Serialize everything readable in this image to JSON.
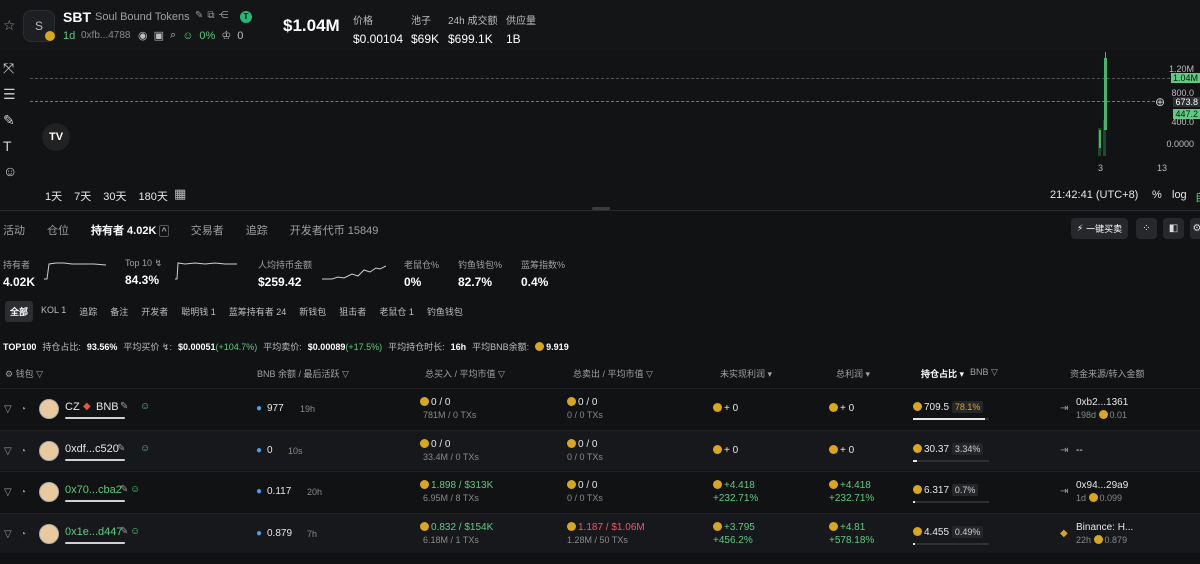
{
  "token": {
    "symbol": "SBT",
    "name": "Soul Bound Tokens",
    "logo_letter": "S",
    "badge": "T",
    "age": "1d",
    "address": "0xfb...4788",
    "holders_pct": "0%",
    "holders_count": "0"
  },
  "market": {
    "mcap": "$1.04M",
    "stats": [
      {
        "label": "价格",
        "value": "$0.00104"
      },
      {
        "label": "池子",
        "value": "$69K"
      },
      {
        "label": "24h 成交额",
        "value": "$699.1K"
      },
      {
        "label": "供应量",
        "value": "1B"
      }
    ]
  },
  "chart": {
    "y_labels": [
      "1.20M",
      "1.04M",
      "800.0",
      "673.8",
      "447.2",
      "400.0",
      "0.0000"
    ],
    "x_labels": [
      "3",
      "13"
    ],
    "periods": [
      "1天",
      "7天",
      "30天",
      "180天"
    ],
    "clock": "21:42:41 (UTC+8)",
    "pct": "%",
    "log": "log",
    "auto": "自",
    "logo_text": "TV"
  },
  "tabs": [
    {
      "label": "活动"
    },
    {
      "label": "仓位"
    },
    {
      "label": "持有者 4.02K"
    },
    {
      "label": "交易者"
    },
    {
      "label": "追踪"
    },
    {
      "label": "开发者代币 15849"
    }
  ],
  "toolbar": {
    "one_click": "一键买卖"
  },
  "metrics": [
    {
      "label": "持有者",
      "value": "4.02K"
    },
    {
      "label": "Top 10 ↯",
      "value": "84.3%"
    },
    {
      "label": "人均持币金额",
      "value": "$259.42"
    },
    {
      "label": "老鼠仓%",
      "value": "0%"
    },
    {
      "label": "钓鱼钱包%",
      "value": "82.7%"
    },
    {
      "label": "蓝筹指数%",
      "value": "0.4%"
    }
  ],
  "filters": [
    "全部",
    "KOL 1",
    "追踪",
    "备注",
    "开发者",
    "聪明钱 1",
    "蓝筹持有者 24",
    "新钱包",
    "狙击者",
    "老鼠仓 1",
    "钓鱼钱包"
  ],
  "summary": {
    "top": "TOP100",
    "hold_label": "持仓占比:",
    "hold": "93.56%",
    "avgbuy_label": "平均买价 ↯:",
    "avgbuy": "$0.00051",
    "avgbuy_chg": "(+104.7%)",
    "avgsell_label": "平均卖价:",
    "avgsell": "$0.00089",
    "avgsell_chg": "(+17.5%)",
    "avgtime_label": "平均持仓时长:",
    "avgtime": "16h",
    "bnb_label": "平均BNB余额:",
    "bnb": "9.919"
  },
  "columns": [
    "钱包",
    "BNB 余额 / 最后活跃",
    "总买入 / 平均市值",
    "总卖出 / 平均市值",
    "未实现利润",
    "总利润",
    "持仓占比",
    "BNB",
    "资金来源/转入金额"
  ],
  "rows": [
    {
      "wallet": "CZ",
      "tag": "BNB",
      "bal": "977",
      "active": "19h",
      "buy": "0 / 0",
      "buy_sub": "781M / 0 TXs",
      "sell": "0 / 0",
      "sell_sub": "0 / 0 TXs",
      "unreal": "+ 0",
      "unreal_pct": "",
      "total": "+ 0",
      "total_pct": "",
      "hold": "709.5",
      "hold_pct": "78.1%",
      "hold_frac": 0.95,
      "src": "0xb2...1361",
      "src_time": "198d",
      "src_amt": "0.01"
    },
    {
      "wallet": "0xdf...c520",
      "tag": "",
      "bal": "0",
      "active": "10s",
      "buy": "0 / 0",
      "buy_sub": "33.4M / 0 TXs",
      "sell": "0 / 0",
      "sell_sub": "0 / 0 TXs",
      "unreal": "+ 0",
      "unreal_pct": "",
      "total": "+ 0",
      "total_pct": "",
      "hold": "30.37",
      "hold_pct": "3.34%",
      "hold_frac": 0.05,
      "src": "--",
      "src_time": "",
      "src_amt": ""
    },
    {
      "wallet": "0x70...cba2",
      "tag": "",
      "bal": "0.117",
      "active": "20h",
      "buy": "1.898 / $313K",
      "buy_sub": "6.95M / 8 TXs",
      "sell": "0 / 0",
      "sell_sub": "0 / 0 TXs",
      "unreal": "+4.418",
      "unreal_pct": "+232.71%",
      "total": "+4.418",
      "total_pct": "+232.71%",
      "hold": "6.317",
      "hold_pct": "0.7%",
      "hold_frac": 0.01,
      "src": "0x94...29a9",
      "src_time": "1d",
      "src_amt": "0.099"
    },
    {
      "wallet": "0x1e...d447",
      "tag": "",
      "bal": "0.879",
      "active": "7h",
      "buy": "0.832 / $154K",
      "buy_sub": "6.18M / 1 TXs",
      "sell": "1.187 / $1.06M",
      "sell_sub": "1.28M / 50 TXs",
      "unreal": "+3.795",
      "unreal_pct": "+456.2%",
      "total": "+4.81",
      "total_pct": "+578.18%",
      "hold": "4.455",
      "hold_pct": "0.49%",
      "hold_frac": 0.01,
      "src": "Binance: H...",
      "src_time": "22h",
      "src_amt": "0.879"
    }
  ]
}
